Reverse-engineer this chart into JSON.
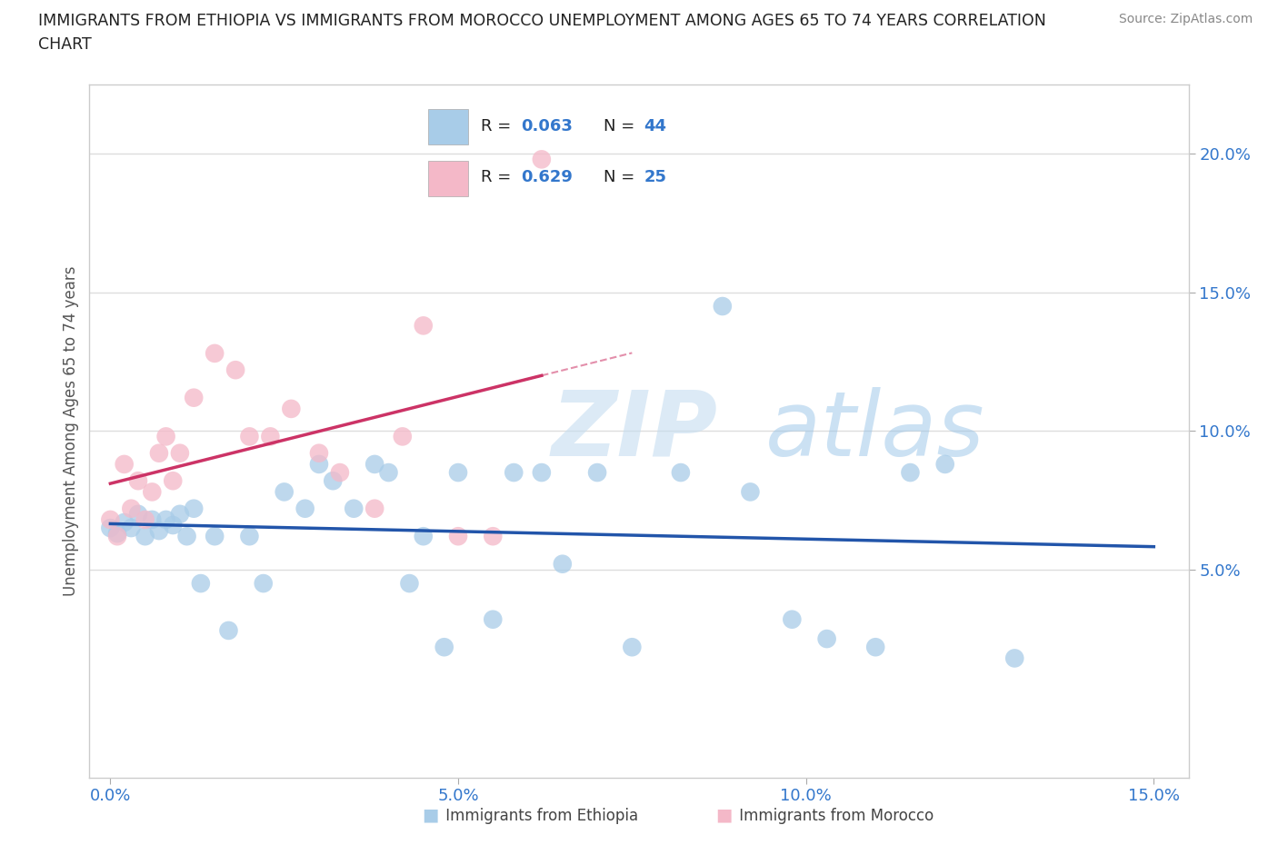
{
  "title_line1": "IMMIGRANTS FROM ETHIOPIA VS IMMIGRANTS FROM MOROCCO UNEMPLOYMENT AMONG AGES 65 TO 74 YEARS CORRELATION",
  "title_line2": "CHART",
  "source": "Source: ZipAtlas.com",
  "ylabel": "Unemployment Among Ages 65 to 74 years",
  "xlim": [
    -0.003,
    0.155
  ],
  "ylim": [
    -0.025,
    0.225
  ],
  "xticks": [
    0.0,
    0.05,
    0.1,
    0.15
  ],
  "yticks": [
    0.05,
    0.1,
    0.15,
    0.2
  ],
  "xticklabels": [
    "0.0%",
    "5.0%",
    "10.0%",
    "15.0%"
  ],
  "yticklabels": [
    "5.0%",
    "10.0%",
    "15.0%",
    "20.0%"
  ],
  "ethiopia_color": "#a8cce8",
  "morocco_color": "#f4b8c8",
  "ethiopia_line_color": "#2255aa",
  "morocco_line_color": "#cc3366",
  "R_ethiopia": 0.063,
  "N_ethiopia": 44,
  "R_morocco": 0.629,
  "N_morocco": 25,
  "eth_x": [
    0.0,
    0.001,
    0.002,
    0.003,
    0.004,
    0.005,
    0.006,
    0.007,
    0.008,
    0.009,
    0.01,
    0.011,
    0.012,
    0.013,
    0.015,
    0.017,
    0.02,
    0.022,
    0.025,
    0.028,
    0.03,
    0.032,
    0.035,
    0.038,
    0.04,
    0.043,
    0.045,
    0.048,
    0.05,
    0.055,
    0.058,
    0.062,
    0.065,
    0.07,
    0.075,
    0.082,
    0.088,
    0.092,
    0.098,
    0.103,
    0.11,
    0.115,
    0.12,
    0.13
  ],
  "eth_y": [
    0.065,
    0.063,
    0.067,
    0.065,
    0.07,
    0.062,
    0.068,
    0.064,
    0.068,
    0.066,
    0.07,
    0.062,
    0.072,
    0.045,
    0.062,
    0.028,
    0.062,
    0.045,
    0.078,
    0.072,
    0.088,
    0.082,
    0.072,
    0.088,
    0.085,
    0.045,
    0.062,
    0.022,
    0.085,
    0.032,
    0.085,
    0.085,
    0.052,
    0.085,
    0.022,
    0.085,
    0.145,
    0.078,
    0.032,
    0.025,
    0.022,
    0.085,
    0.088,
    0.018
  ],
  "mor_x": [
    0.0,
    0.001,
    0.002,
    0.003,
    0.004,
    0.005,
    0.006,
    0.007,
    0.008,
    0.009,
    0.01,
    0.012,
    0.015,
    0.018,
    0.02,
    0.023,
    0.026,
    0.03,
    0.033,
    0.038,
    0.042,
    0.045,
    0.05,
    0.055,
    0.062
  ],
  "mor_y": [
    0.068,
    0.062,
    0.088,
    0.072,
    0.082,
    0.068,
    0.078,
    0.092,
    0.098,
    0.082,
    0.092,
    0.112,
    0.128,
    0.122,
    0.098,
    0.098,
    0.108,
    0.092,
    0.085,
    0.072,
    0.098,
    0.138,
    0.062,
    0.062,
    0.198
  ],
  "watermark_zip": "ZIP",
  "watermark_atlas": "atlas",
  "background_color": "#ffffff",
  "grid_color": "#dddddd",
  "tick_color": "#3377cc",
  "spine_color": "#cccccc"
}
